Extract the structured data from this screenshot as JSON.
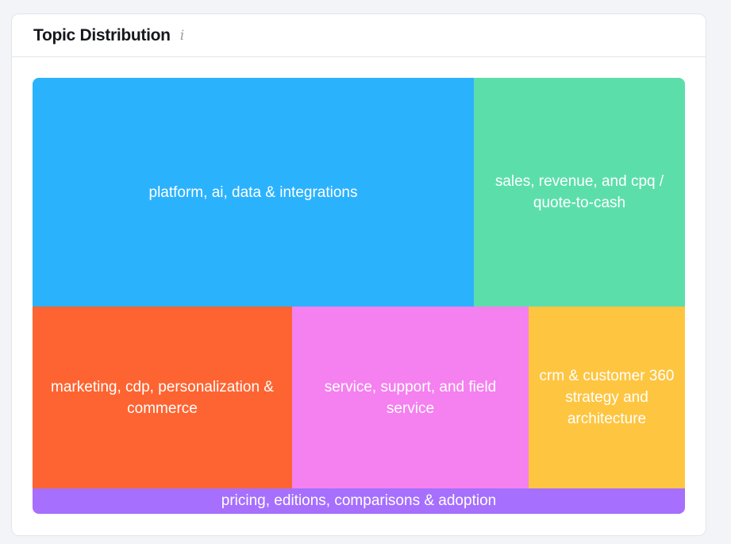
{
  "card": {
    "title": "Topic Distribution",
    "info_icon": "info-icon"
  },
  "chart_data": {
    "type": "treemap",
    "title": "",
    "items": [
      {
        "label": "platform, ai, data & integrations",
        "share": 35.5,
        "color": "#2bb2fd"
      },
      {
        "label": "sales, revenue, and cpq / quote-to-cash",
        "share": 17.0,
        "color": "#5cdeab"
      },
      {
        "label": "marketing, cdp, personalization & commerce",
        "share": 16.6,
        "color": "#fe6431"
      },
      {
        "label": "service, support, and field service",
        "share": 15.1,
        "color": "#f580ef"
      },
      {
        "label": "crm & customer 360 strategy and architecture",
        "share": 10.0,
        "color": "#fec540"
      },
      {
        "label": "pricing, editions, comparisons & adoption",
        "share": 5.8,
        "color": "#a66ffd"
      }
    ]
  }
}
